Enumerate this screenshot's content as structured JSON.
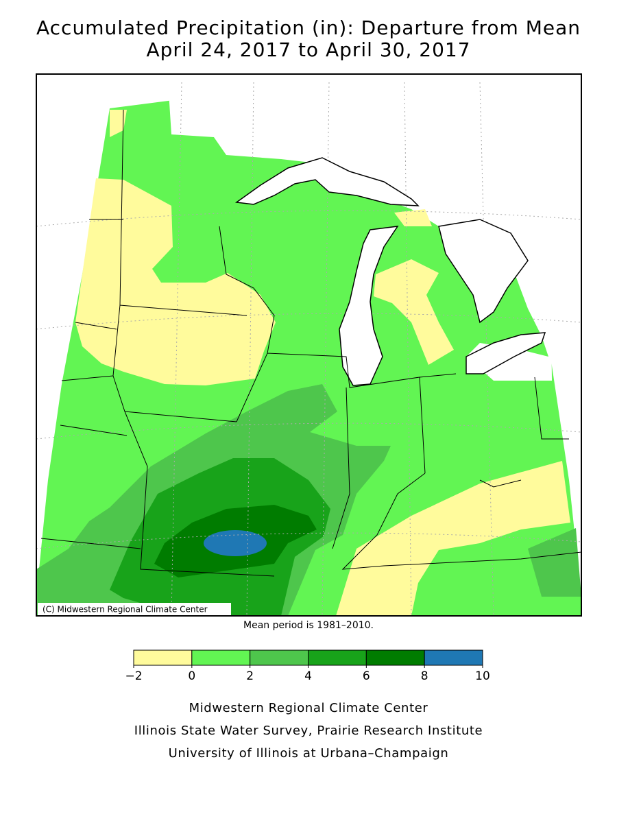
{
  "title": "Accumulated Precipitation (in): Departure from Mean",
  "subtitle": "April 24, 2017 to April 30, 2017",
  "copyright": "(C) Midwestern Regional Climate Center",
  "note": "Mean period is 1981–2010.",
  "legend": {
    "ticks": [
      {
        "value": -2,
        "label": "−2"
      },
      0,
      2,
      4,
      6,
      8,
      10
    ],
    "colors": [
      "#fffb9c",
      "#62f553",
      "#4ec64c",
      "#18a31a",
      "#007c00",
      "#1f78b4"
    ]
  },
  "footer": [
    "Midwestern Regional Climate Center",
    "Illinois State Water Survey, Prairie Research Institute",
    "University of Illinois at Urbana–Champaign"
  ]
}
